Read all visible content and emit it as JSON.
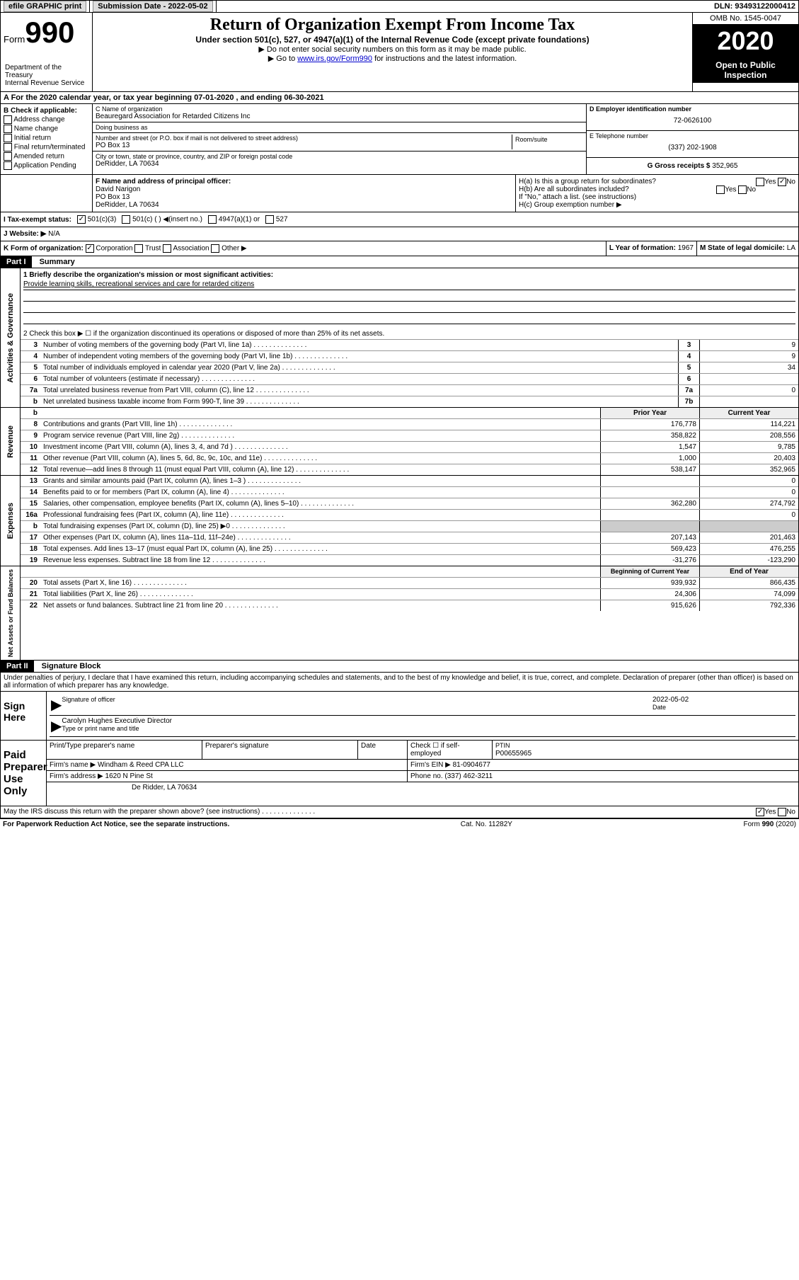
{
  "header": {
    "efile": "efile GRAPHIC print",
    "submission_label": "Submission Date - 2022-05-02",
    "dln": "DLN: 93493122000412"
  },
  "title_block": {
    "form_word": "Form",
    "form_num": "990",
    "dept": "Department of the Treasury\nInternal Revenue Service",
    "main_title": "Return of Organization Exempt From Income Tax",
    "subtitle": "Under section 501(c), 527, or 4947(a)(1) of the Internal Revenue Code (except private foundations)",
    "instr1": "▶ Do not enter social security numbers on this form as it may be made public.",
    "instr2_pre": "▶ Go to ",
    "instr2_link": "www.irs.gov/Form990",
    "instr2_post": " for instructions and the latest information.",
    "omb": "OMB No. 1545-0047",
    "year": "2020",
    "open": "Open to Public Inspection"
  },
  "section_a": "A For the 2020 calendar year, or tax year beginning 07-01-2020    , and ending 06-30-2021",
  "section_b": {
    "label": "B Check if applicable:",
    "opts": [
      "Address change",
      "Name change",
      "Initial return",
      "Final return/terminated",
      "Amended return",
      "Application Pending"
    ]
  },
  "section_c": {
    "name_label": "C Name of organization",
    "name": "Beauregard Association for Retarded Citizens Inc",
    "dba_label": "Doing business as",
    "dba": "",
    "addr_label": "Number and street (or P.O. box if mail is not delivered to street address)",
    "room_label": "Room/suite",
    "addr": "PO Box 13",
    "city_label": "City or town, state or province, country, and ZIP or foreign postal code",
    "city": "DeRidder, LA   70634"
  },
  "section_d": {
    "label": "D Employer identification number",
    "value": "72-0626100"
  },
  "section_e": {
    "label": "E Telephone number",
    "value": "(337) 202-1908"
  },
  "section_g": {
    "label": "G Gross receipts $",
    "value": "352,965"
  },
  "section_f": {
    "label": "F  Name and address of principal officer:",
    "name": "David Narigon",
    "addr": "PO Box 13",
    "city": "DeRidder, LA  70634"
  },
  "section_h": {
    "ha": "H(a)  Is this a group return for subordinates?",
    "hb": "H(b)  Are all subordinates included?",
    "hb_note": "If \"No,\" attach a list. (see instructions)",
    "hc": "H(c)  Group exemption number ▶"
  },
  "section_i": {
    "label": "I  Tax-exempt status:",
    "opts": [
      "501(c)(3)",
      "501(c) (  ) ◀(insert no.)",
      "4947(a)(1) or",
      "527"
    ]
  },
  "section_j": {
    "label": "J  Website: ▶",
    "value": "N/A"
  },
  "section_k": {
    "label": "K Form of organization:",
    "opts": [
      "Corporation",
      "Trust",
      "Association",
      "Other ▶"
    ]
  },
  "section_l": {
    "label": "L Year of formation:",
    "value": "1967"
  },
  "section_m": {
    "label": "M State of legal domicile:",
    "value": "LA"
  },
  "part1": {
    "header": "Part I",
    "title": "Summary",
    "mission_label": "1  Briefly describe the organization's mission or most significant activities:",
    "mission": "Provide learning skills, recreational services and care for retarded citizens",
    "line2": "2   Check this box ▶ ☐  if the organization discontinued its operations or disposed of more than 25% of its net assets.",
    "activities_lines": [
      {
        "n": "3",
        "t": "Number of voting members of the governing body (Part VI, line 1a)",
        "c": "3",
        "v": "9"
      },
      {
        "n": "4",
        "t": "Number of independent voting members of the governing body (Part VI, line 1b)",
        "c": "4",
        "v": "9"
      },
      {
        "n": "5",
        "t": "Total number of individuals employed in calendar year 2020 (Part V, line 2a)",
        "c": "5",
        "v": "34"
      },
      {
        "n": "6",
        "t": "Total number of volunteers (estimate if necessary)",
        "c": "6",
        "v": ""
      },
      {
        "n": "7a",
        "t": "Total unrelated business revenue from Part VIII, column (C), line 12",
        "c": "7a",
        "v": "0"
      },
      {
        "n": "b",
        "t": "Net unrelated business taxable income from Form 990-T, line 39",
        "c": "7b",
        "v": ""
      }
    ],
    "col_headers": {
      "py": "Prior Year",
      "cy": "Current Year"
    },
    "revenue_lines": [
      {
        "n": "8",
        "t": "Contributions and grants (Part VIII, line 1h)",
        "py": "176,778",
        "cy": "114,221"
      },
      {
        "n": "9",
        "t": "Program service revenue (Part VIII, line 2g)",
        "py": "358,822",
        "cy": "208,556"
      },
      {
        "n": "10",
        "t": "Investment income (Part VIII, column (A), lines 3, 4, and 7d )",
        "py": "1,547",
        "cy": "9,785"
      },
      {
        "n": "11",
        "t": "Other revenue (Part VIII, column (A), lines 5, 6d, 8c, 9c, 10c, and 11e)",
        "py": "1,000",
        "cy": "20,403"
      },
      {
        "n": "12",
        "t": "Total revenue—add lines 8 through 11 (must equal Part VIII, column (A), line 12)",
        "py": "538,147",
        "cy": "352,965"
      }
    ],
    "expense_lines": [
      {
        "n": "13",
        "t": "Grants and similar amounts paid (Part IX, column (A), lines 1–3 )",
        "py": "",
        "cy": "0"
      },
      {
        "n": "14",
        "t": "Benefits paid to or for members (Part IX, column (A), line 4)",
        "py": "",
        "cy": "0"
      },
      {
        "n": "15",
        "t": "Salaries, other compensation, employee benefits (Part IX, column (A), lines 5–10)",
        "py": "362,280",
        "cy": "274,792"
      },
      {
        "n": "16a",
        "t": "Professional fundraising fees (Part IX, column (A), line 11e)",
        "py": "",
        "cy": "0"
      },
      {
        "n": "b",
        "t": "Total fundraising expenses (Part IX, column (D), line 25) ▶0",
        "py": "GRAY",
        "cy": "GRAY"
      },
      {
        "n": "17",
        "t": "Other expenses (Part IX, column (A), lines 11a–11d, 11f–24e)",
        "py": "207,143",
        "cy": "201,463"
      },
      {
        "n": "18",
        "t": "Total expenses. Add lines 13–17 (must equal Part IX, column (A), line 25)",
        "py": "569,423",
        "cy": "476,255"
      },
      {
        "n": "19",
        "t": "Revenue less expenses. Subtract line 18 from line 12",
        "py": "-31,276",
        "cy": "-123,290"
      }
    ],
    "net_headers": {
      "by": "Beginning of Current Year",
      "ey": "End of Year"
    },
    "net_lines": [
      {
        "n": "20",
        "t": "Total assets (Part X, line 16)",
        "by": "939,932",
        "ey": "866,435"
      },
      {
        "n": "21",
        "t": "Total liabilities (Part X, line 26)",
        "by": "24,306",
        "ey": "74,099"
      },
      {
        "n": "22",
        "t": "Net assets or fund balances. Subtract line 21 from line 20",
        "by": "915,626",
        "ey": "792,336"
      }
    ],
    "vlabels": {
      "act": "Activities & Governance",
      "rev": "Revenue",
      "exp": "Expenses",
      "net": "Net Assets or Fund Balances"
    }
  },
  "part2": {
    "header": "Part II",
    "title": "Signature Block",
    "declaration": "Under penalties of perjury, I declare that I have examined this return, including accompanying schedules and statements, and to the best of my knowledge and belief, it is true, correct, and complete. Declaration of preparer (other than officer) is based on all information of which preparer has any knowledge.",
    "sign_here": "Sign Here",
    "sig_officer": "Signature of officer",
    "sig_date": "2022-05-02",
    "date_label": "Date",
    "sig_name": "Carolyn Hughes  Executive Director",
    "sig_name_label": "Type or print name and title",
    "paid": "Paid Preparer Use Only",
    "prep_name_label": "Print/Type preparer's name",
    "prep_sig_label": "Preparer's signature",
    "prep_date_label": "Date",
    "prep_check": "Check ☐ if self-employed",
    "ptin_label": "PTIN",
    "ptin": "P00655965",
    "firm_name_label": "Firm's name    ▶",
    "firm_name": "Windham & Reed CPA LLC",
    "firm_ein_label": "Firm's EIN ▶",
    "firm_ein": "81-0904677",
    "firm_addr_label": "Firm's address ▶",
    "firm_addr1": "1620 N Pine St",
    "firm_addr2": "De Ridder, LA  70634",
    "phone_label": "Phone no.",
    "phone": "(337) 462-3211",
    "discuss": "May the IRS discuss this return with the preparer shown above? (see instructions)"
  },
  "footer": {
    "paperwork": "For Paperwork Reduction Act Notice, see the separate instructions.",
    "cat": "Cat. No. 11282Y",
    "form": "Form 990 (2020)"
  },
  "yesno": {
    "yes": "Yes",
    "no": "No"
  }
}
